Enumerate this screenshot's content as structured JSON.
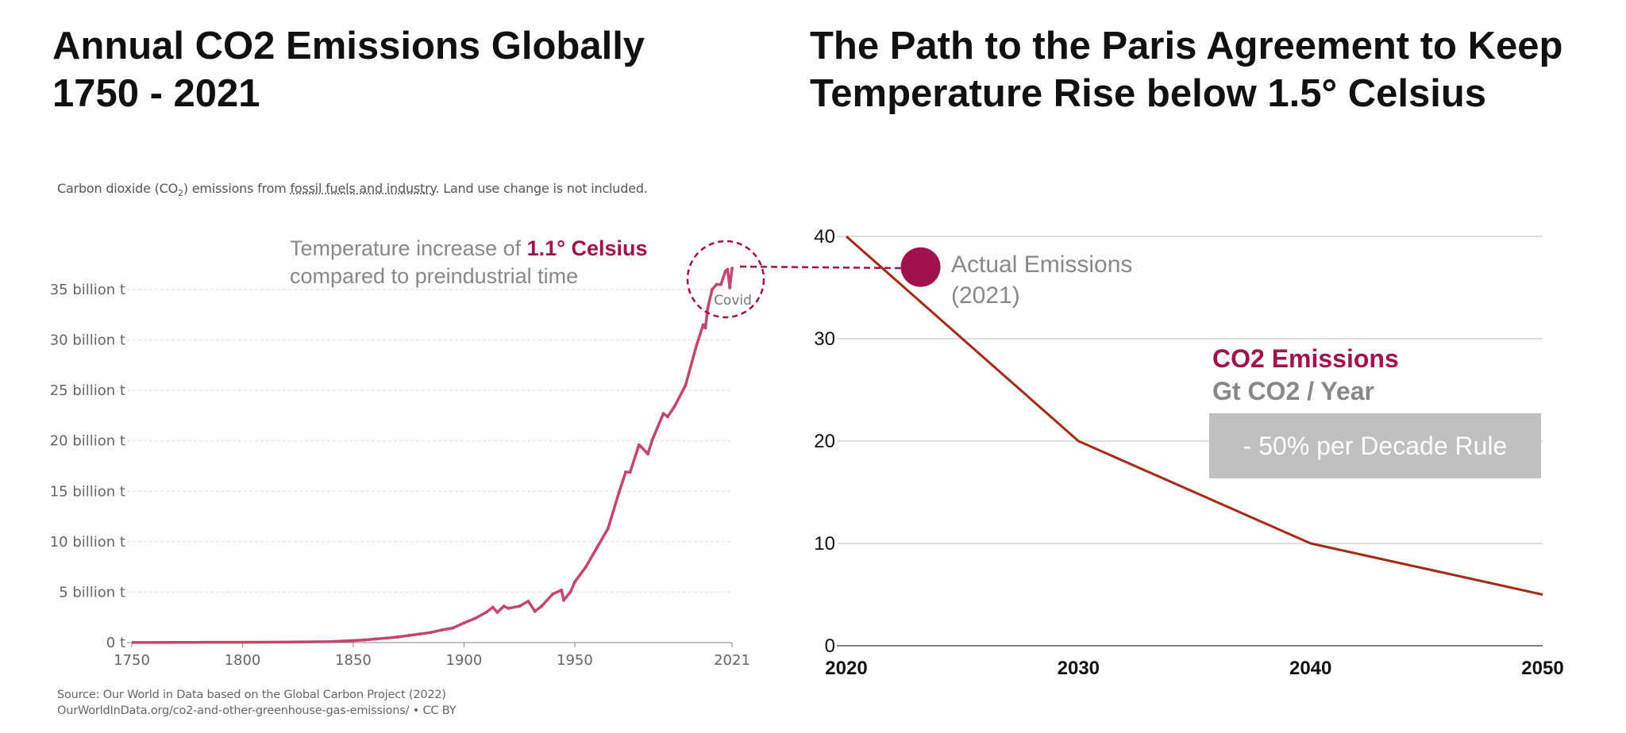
{
  "left": {
    "title_line1": "Annual CO2 Emissions Globally",
    "title_line2": "1750 - 2021",
    "subtitle_pre": "Carbon dioxide (CO",
    "subtitle_sub": "2",
    "subtitle_mid": ") emissions from ",
    "subtitle_link": "fossil fuels and industry",
    "subtitle_post": ". Land use change is not included.",
    "annotation_pre": "Temperature increase of ",
    "annotation_highlight": "1.1° Celsius",
    "annotation_line2": "compared to preindustrial time",
    "covid_label": "Covid",
    "source_line1": "Source: Our World in Data based on the Global Carbon Project (2022)",
    "source_line2": "OurWorldInData.org/co2-and-other-greenhouse-gas-emissions/ • CC BY"
  },
  "right": {
    "title_line1": "The Path to the Paris Agreement to Keep",
    "title_line2": "Temperature Rise below 1.5° Celsius",
    "legend_line1": "Actual Emissions",
    "legend_line2": "(2021)",
    "series_name": "CO2 Emissions",
    "series_unit": "Gt CO2 / Year",
    "rule_label": "- 50% per Decade Rule"
  },
  "colors": {
    "left_line": "#c2476a",
    "right_line": "#a52a15",
    "highlight": "#a0114e",
    "grid": "#dddddd"
  },
  "chart_data": [
    {
      "type": "line",
      "title": "Annual CO2 Emissions Globally 1750 - 2021",
      "x_ticks": [
        1750,
        1800,
        1850,
        1900,
        1950,
        2021
      ],
      "x_tick_labels": [
        "1750",
        "1800",
        "1850",
        "1900",
        "1950",
        "2021"
      ],
      "y_ticks": [
        0,
        5,
        10,
        15,
        20,
        25,
        30,
        35
      ],
      "y_tick_labels": [
        "0 t",
        "5 billion t",
        "10 billion t",
        "15 billion t",
        "20 billion t",
        "25 billion t",
        "30 billion t",
        "35 billion t"
      ],
      "xlim": [
        1750,
        2021
      ],
      "ylim": [
        0,
        35
      ],
      "grid": true,
      "series": [
        {
          "x": [
            1750,
            1760,
            1770,
            1780,
            1790,
            1800,
            1810,
            1820,
            1830,
            1840,
            1850,
            1855,
            1860,
            1865,
            1870,
            1875,
            1880,
            1885,
            1890,
            1895,
            1900,
            1905,
            1910,
            1913,
            1915,
            1918,
            1920,
            1925,
            1929,
            1932,
            1935,
            1940,
            1944,
            1945,
            1948,
            1950,
            1955,
            1960,
            1965,
            1970,
            1973,
            1975,
            1979,
            1980,
            1983,
            1985,
            1990,
            1992,
            1995,
            2000,
            2005,
            2008,
            2009,
            2010,
            2012,
            2014,
            2016,
            2018,
            2019,
            2020,
            2021
          ],
          "values": [
            0.01,
            0.01,
            0.02,
            0.02,
            0.03,
            0.03,
            0.04,
            0.05,
            0.07,
            0.1,
            0.2,
            0.26,
            0.35,
            0.44,
            0.55,
            0.7,
            0.85,
            1.0,
            1.25,
            1.45,
            1.95,
            2.4,
            3.0,
            3.5,
            3.0,
            3.6,
            3.4,
            3.6,
            4.1,
            3.1,
            3.6,
            4.8,
            5.2,
            4.2,
            5.0,
            6.0,
            7.5,
            9.4,
            11.3,
            14.9,
            16.9,
            16.9,
            19.6,
            19.4,
            18.7,
            20.1,
            22.7,
            22.4,
            23.4,
            25.5,
            29.5,
            31.5,
            31.2,
            33.1,
            35.0,
            35.5,
            35.5,
            36.8,
            37.0,
            35.2,
            37.1
          ]
        }
      ]
    },
    {
      "type": "line",
      "title": "The Path to the Paris Agreement to Keep Temperature Rise below 1.5° Celsius",
      "x_ticks": [
        2020,
        2030,
        2040,
        2050
      ],
      "x_tick_labels": [
        "2020",
        "2030",
        "2040",
        "2050"
      ],
      "y_ticks": [
        0,
        10,
        20,
        30,
        40
      ],
      "y_tick_labels": [
        "0",
        "10",
        "20",
        "30",
        "40"
      ],
      "xlim": [
        2020,
        2050
      ],
      "ylim": [
        0,
        40
      ],
      "grid": true,
      "series": [
        {
          "name": "CO2 Emissions",
          "x": [
            2020,
            2030,
            2040,
            2050
          ],
          "values": [
            40,
            20,
            10,
            5
          ]
        }
      ],
      "markers": [
        {
          "label": "Actual Emissions (2021)",
          "x": 2023.2,
          "y": 37
        }
      ]
    }
  ]
}
